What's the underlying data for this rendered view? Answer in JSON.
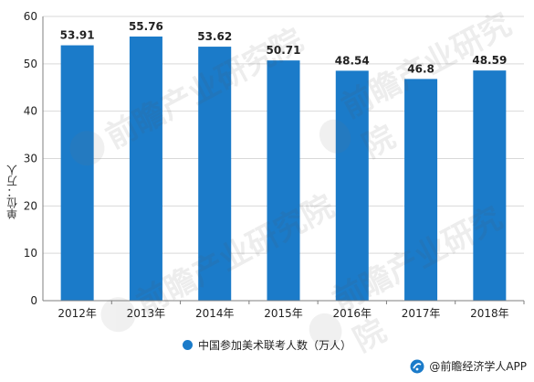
{
  "colors": {
    "bar": "#1b7bc9",
    "axis": "#7f7f7f",
    "grid": "#d9d9d9",
    "label": "#222222"
  },
  "chart_data": {
    "type": "bar",
    "categories": [
      "2012年",
      "2013年",
      "2014年",
      "2015年",
      "2016年",
      "2017年",
      "2018年"
    ],
    "series": [
      {
        "name": "中国参加美术联考人数（万人）",
        "values": [
          53.91,
          55.76,
          53.62,
          50.71,
          48.54,
          46.8,
          48.59
        ]
      }
    ],
    "data_labels": [
      "53.91",
      "55.76",
      "53.62",
      "50.71",
      "48.54",
      "46.8",
      "48.59"
    ],
    "ylabel": "单位：万人",
    "ylim": [
      0,
      60
    ],
    "yticks": [
      0,
      10,
      20,
      30,
      40,
      50,
      60
    ],
    "grid": "horizontal",
    "legend_position": "bottom"
  },
  "source": {
    "text": "@前瞻经济学人APP",
    "logo_icon": "qianzhan-logo-icon"
  },
  "watermark": {
    "text": "前瞻产业研究院",
    "icon": "qianzhan-logo-icon"
  }
}
